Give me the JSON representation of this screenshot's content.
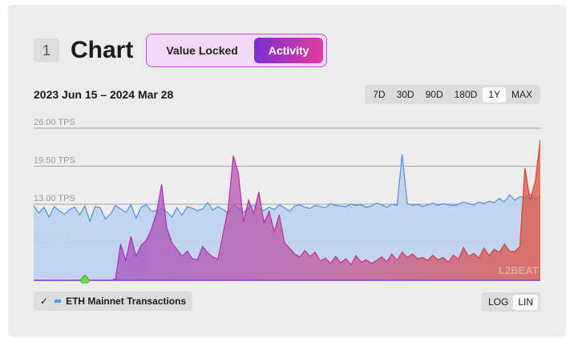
{
  "header": {
    "number": "1",
    "title": "Chart"
  },
  "segments": [
    {
      "label": "Value Locked",
      "active": false
    },
    {
      "label": "Activity",
      "active": true
    }
  ],
  "date_range": "2023 Jun 15 – 2024 Mar 28",
  "range_buttons": [
    {
      "label": "7D",
      "active": false
    },
    {
      "label": "30D",
      "active": false
    },
    {
      "label": "90D",
      "active": false
    },
    {
      "label": "180D",
      "active": false
    },
    {
      "label": "1Y",
      "active": true
    },
    {
      "label": "MAX",
      "active": false
    }
  ],
  "legend": {
    "checked": true,
    "check": "✓",
    "label": "ETH Mainnet Transactions"
  },
  "scale_buttons": [
    {
      "label": "LOG",
      "active": false
    },
    {
      "label": "LIN",
      "active": true
    }
  ],
  "watermark": "L2BEAT",
  "colors": {
    "eth_line": "#4d8fe6",
    "eth_fill": "#bcd3ee",
    "layer2_start": "#9b4fd0",
    "layer2_mid": "#c24d9b",
    "layer2_end": "#e0523a",
    "marker": "#66dd55"
  },
  "chart_data": {
    "type": "area",
    "ylim": [
      0,
      26
    ],
    "yticks": [
      "0.00 TPS",
      "6.50 TPS",
      "13.00 TPS",
      "19.50 TPS",
      "26.00 TPS"
    ],
    "grid": true,
    "legend_position": "bottom-left",
    "series": [
      {
        "name": "ETH Mainnet Transactions",
        "values": [
          12.8,
          11.5,
          12.5,
          10.8,
          12.6,
          11.9,
          11.3,
          12.1,
          12.5,
          11.2,
          12.7,
          10.1,
          12.6,
          12.4,
          10.5,
          11.3,
          12.8,
          12.2,
          11.6,
          12.9,
          10.6,
          12.5,
          12.9,
          11.8,
          11.9,
          12.3,
          11.7,
          10.8,
          12.4,
          11.1,
          12.6,
          12.3,
          11.9,
          12.2,
          13.3,
          12.0,
          12.6,
          12.1,
          11.5,
          12.9,
          12.3,
          11.6,
          12.4,
          12.8,
          12.2,
          11.9,
          12.5,
          12.1,
          12.9,
          12.4,
          11.8,
          12.7,
          12.9,
          12.5,
          12.3,
          12.8,
          12.6,
          12.4,
          13.1,
          12.8,
          12.7,
          12.6,
          13.0,
          12.8,
          12.9,
          12.5,
          12.7,
          13.2,
          12.9,
          12.5,
          13.0,
          12.8,
          21.5,
          13.1,
          12.8,
          13.0,
          12.6,
          12.9,
          13.2,
          12.8,
          13.1,
          12.9,
          12.8,
          13.0,
          13.4,
          13.1,
          12.9,
          13.4,
          13.1,
          13.5,
          13.3,
          14.0,
          13.4,
          14.6,
          13.7,
          14.3,
          14.1,
          14.7,
          13.9,
          14.4
        ]
      },
      {
        "name": "",
        "values": [
          0,
          0,
          0,
          0,
          0,
          0,
          0,
          0,
          0,
          0,
          0,
          0,
          0,
          0,
          0,
          0,
          0.2,
          6.2,
          3.4,
          7.5,
          4.1,
          6.0,
          6.8,
          8.7,
          11.5,
          16.4,
          9.0,
          6.4,
          5.3,
          4.1,
          5.0,
          3.7,
          3.5,
          5.8,
          4.7,
          4.0,
          3.6,
          7.9,
          12.2,
          21.3,
          18.2,
          10.0,
          13.7,
          11.4,
          15.1,
          9.8,
          11.8,
          8.3,
          11.2,
          6.4,
          5.5,
          4.5,
          4.0,
          5.1,
          4.1,
          4.8,
          3.3,
          3.8,
          2.9,
          4.1,
          3.0,
          3.7,
          2.7,
          4.2,
          3.1,
          3.5,
          2.9,
          3.4,
          4.0,
          3.2,
          4.5,
          3.4,
          4.8,
          3.9,
          4.5,
          3.7,
          3.9,
          3.4,
          4.3,
          3.5,
          3.9,
          3.1,
          4.3,
          3.6,
          5.6,
          4.1,
          4.6,
          3.8,
          5.5,
          4.2,
          5.3,
          4.8,
          6.2,
          5.0,
          4.9,
          5.8,
          19.2,
          13.7,
          16.8,
          24.0
        ]
      }
    ],
    "annotations": []
  }
}
